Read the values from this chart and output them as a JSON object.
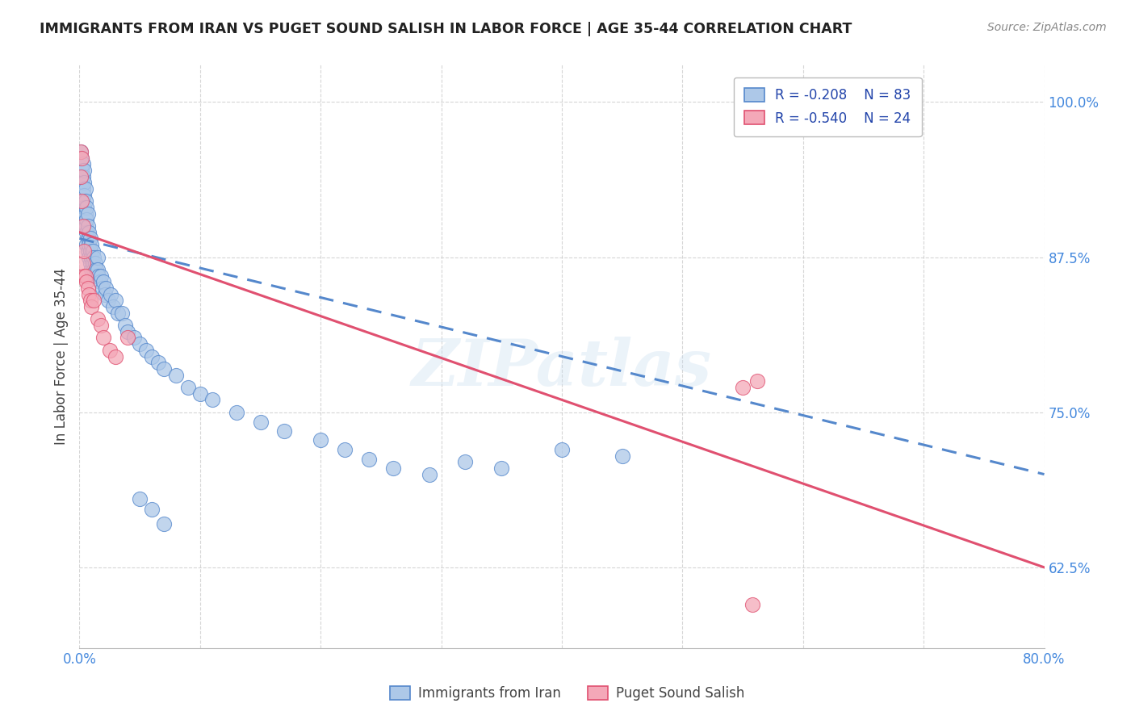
{
  "title": "IMMIGRANTS FROM IRAN VS PUGET SOUND SALISH IN LABOR FORCE | AGE 35-44 CORRELATION CHART",
  "source": "Source: ZipAtlas.com",
  "ylabel": "In Labor Force | Age 35-44",
  "xlim": [
    0.0,
    0.8
  ],
  "ylim": [
    0.56,
    1.03
  ],
  "xticks": [
    0.0,
    0.1,
    0.2,
    0.3,
    0.4,
    0.5,
    0.6,
    0.7,
    0.8
  ],
  "xticklabels": [
    "0.0%",
    "",
    "",
    "",
    "",
    "",
    "",
    "",
    "80.0%"
  ],
  "yticks": [
    0.625,
    0.75,
    0.875,
    1.0
  ],
  "yticklabels": [
    "62.5%",
    "75.0%",
    "87.5%",
    "100.0%"
  ],
  "r_iran": -0.208,
  "n_iran": 83,
  "r_salish": -0.54,
  "n_salish": 24,
  "color_iran": "#adc8e8",
  "color_salish": "#f4a8b8",
  "color_iran_line": "#5588cc",
  "color_salish_line": "#e05070",
  "legend_label_iran": "Immigrants from Iran",
  "legend_label_salish": "Puget Sound Salish",
  "watermark": "ZIPatlas",
  "iran_line_x0": 0.0,
  "iran_line_y0": 0.89,
  "iran_line_x1": 0.8,
  "iran_line_y1": 0.7,
  "salish_line_x0": 0.0,
  "salish_line_y0": 0.895,
  "salish_line_x1": 0.8,
  "salish_line_y1": 0.625,
  "iran_x": [
    0.001,
    0.001,
    0.002,
    0.002,
    0.002,
    0.003,
    0.003,
    0.003,
    0.003,
    0.004,
    0.004,
    0.004,
    0.004,
    0.005,
    0.005,
    0.005,
    0.005,
    0.006,
    0.006,
    0.006,
    0.006,
    0.007,
    0.007,
    0.007,
    0.007,
    0.008,
    0.008,
    0.008,
    0.009,
    0.009,
    0.009,
    0.01,
    0.01,
    0.01,
    0.011,
    0.011,
    0.012,
    0.012,
    0.013,
    0.013,
    0.014,
    0.015,
    0.015,
    0.016,
    0.017,
    0.018,
    0.019,
    0.02,
    0.021,
    0.022,
    0.024,
    0.026,
    0.028,
    0.03,
    0.032,
    0.035,
    0.038,
    0.04,
    0.045,
    0.05,
    0.055,
    0.06,
    0.065,
    0.07,
    0.08,
    0.09,
    0.1,
    0.11,
    0.13,
    0.15,
    0.17,
    0.2,
    0.22,
    0.24,
    0.26,
    0.29,
    0.32,
    0.35,
    0.4,
    0.45,
    0.05,
    0.06,
    0.07
  ],
  "iran_y": [
    0.94,
    0.96,
    0.955,
    0.945,
    0.935,
    0.95,
    0.94,
    0.93,
    0.92,
    0.945,
    0.935,
    0.925,
    0.915,
    0.93,
    0.92,
    0.91,
    0.9,
    0.915,
    0.905,
    0.895,
    0.885,
    0.91,
    0.9,
    0.89,
    0.88,
    0.895,
    0.885,
    0.875,
    0.89,
    0.88,
    0.87,
    0.885,
    0.875,
    0.865,
    0.88,
    0.87,
    0.875,
    0.865,
    0.87,
    0.86,
    0.865,
    0.875,
    0.865,
    0.86,
    0.855,
    0.86,
    0.85,
    0.855,
    0.845,
    0.85,
    0.84,
    0.845,
    0.835,
    0.84,
    0.83,
    0.83,
    0.82,
    0.815,
    0.81,
    0.805,
    0.8,
    0.795,
    0.79,
    0.785,
    0.78,
    0.77,
    0.765,
    0.76,
    0.75,
    0.742,
    0.735,
    0.728,
    0.72,
    0.712,
    0.705,
    0.7,
    0.71,
    0.705,
    0.72,
    0.715,
    0.68,
    0.672,
    0.66
  ],
  "salish_x": [
    0.001,
    0.001,
    0.002,
    0.002,
    0.003,
    0.003,
    0.004,
    0.004,
    0.005,
    0.006,
    0.007,
    0.008,
    0.009,
    0.01,
    0.012,
    0.015,
    0.018,
    0.02,
    0.025,
    0.03,
    0.04,
    0.55,
    0.558,
    0.562
  ],
  "salish_y": [
    0.96,
    0.94,
    0.955,
    0.92,
    0.9,
    0.87,
    0.88,
    0.86,
    0.86,
    0.855,
    0.85,
    0.845,
    0.84,
    0.835,
    0.84,
    0.825,
    0.82,
    0.81,
    0.8,
    0.795,
    0.81,
    0.77,
    0.595,
    0.775
  ]
}
